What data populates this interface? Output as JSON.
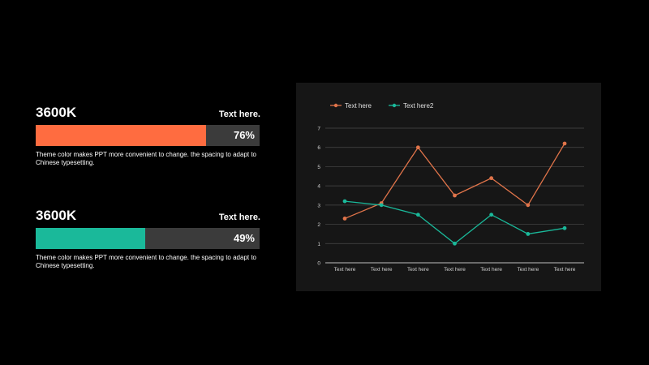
{
  "stats": [
    {
      "value": "3600K",
      "label": "Text here.",
      "percent_text": "76%",
      "percent": 76,
      "color": "#ff6c40",
      "description": "Theme color makes PPT more convenient to change. the spacing to adapt to Chinese typesetting."
    },
    {
      "value": "3600K",
      "label": "Text here.",
      "percent_text": "49%",
      "percent": 49,
      "color": "#1ab99a",
      "description": "Theme color makes PPT more convenient to change. the spacing to adapt to Chinese typesetting."
    }
  ],
  "chart_data": {
    "type": "line",
    "categories": [
      "Text here",
      "Text here",
      "Text here",
      "Text here",
      "Text here",
      "Text here",
      "Text here"
    ],
    "series": [
      {
        "name": "Text here",
        "color": "#e0744a",
        "values": [
          2.3,
          3.1,
          6.0,
          3.5,
          4.4,
          3.0,
          6.2
        ]
      },
      {
        "name": "Text here2",
        "color": "#1ab99a",
        "values": [
          3.2,
          3.0,
          2.5,
          1.0,
          2.5,
          1.5,
          1.8
        ]
      }
    ],
    "ylim": [
      0,
      7
    ],
    "yticks": [
      "0",
      "1",
      "2",
      "3",
      "4",
      "5",
      "6",
      "7"
    ],
    "grid": true,
    "legend": "top-left"
  }
}
